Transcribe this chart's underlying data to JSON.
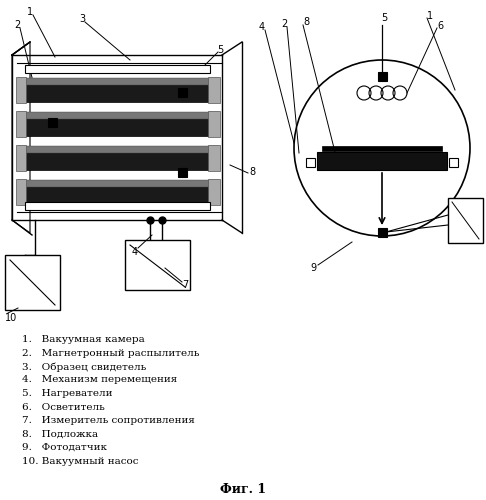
{
  "title": "Фиг. 1",
  "legend_items": [
    "1.   Вакуумная камера",
    "2.   Магнетронный распылитель",
    "3.   Образец свидетель",
    "4.   Механизм перемещения",
    "5.   Нагреватели",
    "6.   Осветитель",
    "7.   Измеритель сопротивления",
    "8.   Подложка",
    "9.   Фотодатчик",
    "10. Вакуумный насос"
  ],
  "bg_color": "#ffffff"
}
